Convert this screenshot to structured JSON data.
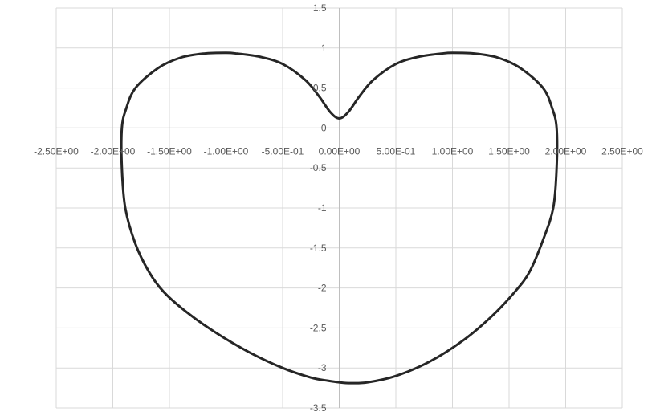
{
  "chart_data": {
    "type": "scatter",
    "title": "",
    "xlabel": "",
    "ylabel": "",
    "xlim": [
      -2.5,
      2.5
    ],
    "ylim": [
      -3.5,
      1.5
    ],
    "x_ticks": [
      -2.5,
      -2.0,
      -1.5,
      -1.0,
      -0.5,
      0.0,
      0.5,
      1.0,
      1.5,
      2.0,
      2.5
    ],
    "x_tick_labels": [
      "-2.50E+00",
      "-2.00E+00",
      "-1.50E+00",
      "-1.00E+00",
      "-5.00E-01",
      "0.00E+00",
      "5.00E-01",
      "1.00E+00",
      "1.50E+00",
      "2.00E+00",
      "2.50E+00"
    ],
    "y_ticks": [
      -3.5,
      -3,
      -2.5,
      -2,
      -1.5,
      -1,
      -0.5,
      0,
      0.5,
      1,
      1.5
    ],
    "y_tick_labels": [
      "-3.5",
      "-3",
      "-2.5",
      "-2",
      "-1.5",
      "-1",
      "-0.5",
      "0",
      "0.5",
      "1",
      "1.5"
    ],
    "grid": true,
    "legend": "none",
    "series_color": "#262626",
    "series": [
      {
        "x": [
          0.0,
          0.08,
          0.18,
          0.3,
          0.5,
          0.7,
          0.9,
          1.0,
          1.2,
          1.4,
          1.6,
          1.8,
          1.88,
          1.92,
          1.92,
          1.89,
          1.8,
          1.68,
          1.55,
          1.35,
          1.1,
          0.8,
          0.5,
          0.25,
          0.1,
          0.0,
          -0.1,
          -0.25,
          -0.5,
          -0.8,
          -1.1,
          -1.35,
          -1.55,
          -1.68,
          -1.8,
          -1.89,
          -1.92,
          -1.92,
          -1.88,
          -1.8,
          -1.6,
          -1.4,
          -1.2,
          -1.0,
          -0.9,
          -0.7,
          -0.5,
          -0.3,
          -0.18,
          -0.08,
          0.0
        ],
        "y": [
          0.12,
          0.2,
          0.4,
          0.6,
          0.8,
          0.89,
          0.93,
          0.94,
          0.93,
          0.88,
          0.75,
          0.5,
          0.25,
          0.0,
          -0.5,
          -1.0,
          -1.4,
          -1.8,
          -2.05,
          -2.35,
          -2.65,
          -2.92,
          -3.1,
          -3.18,
          -3.19,
          -3.18,
          -3.16,
          -3.12,
          -3.0,
          -2.8,
          -2.55,
          -2.3,
          -2.05,
          -1.8,
          -1.45,
          -1.0,
          -0.5,
          0.0,
          0.25,
          0.5,
          0.75,
          0.88,
          0.93,
          0.94,
          0.93,
          0.89,
          0.8,
          0.6,
          0.4,
          0.2,
          0.12
        ]
      }
    ]
  }
}
